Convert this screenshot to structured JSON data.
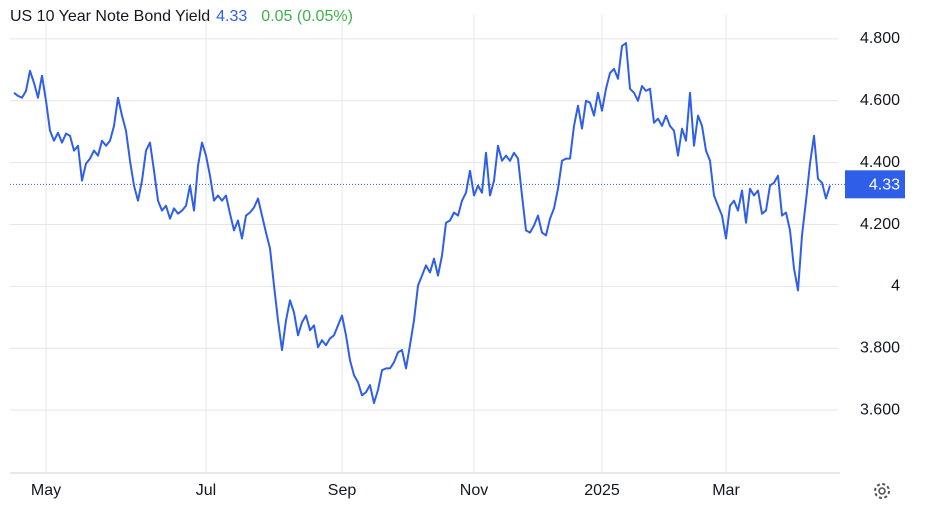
{
  "chart_data": {
    "type": "line",
    "title": "US 10 Year Note Bond Yield",
    "last_value": 4.33,
    "change_label": "0.05 (0.05%)",
    "color": "#2f5fe8",
    "change_color": "#3cb34a",
    "grid": true,
    "ylim": [
      3.4,
      4.9
    ],
    "yticks": [
      {
        "value": 3.6,
        "label": "3.600"
      },
      {
        "value": 3.8,
        "label": "3.800"
      },
      4,
      {
        "value": 4.2,
        "label": "4.200"
      },
      {
        "value": 4.4,
        "label": "4.400"
      },
      {
        "value": 4.6,
        "label": "4.600"
      },
      {
        "value": 4.8,
        "label": "4.800"
      }
    ],
    "xlim": [
      -1,
      206
    ],
    "xticks": [
      {
        "value": 8,
        "label": "May"
      },
      {
        "value": 48,
        "label": "Jul"
      },
      {
        "value": 82,
        "label": "Sep"
      },
      {
        "value": 115,
        "label": "Nov"
      },
      {
        "value": 147,
        "label": "2025"
      },
      {
        "value": 178,
        "label": "Mar"
      }
    ],
    "values": [
      4.626,
      4.616,
      4.61,
      4.632,
      4.697,
      4.658,
      4.61,
      4.681,
      4.6,
      4.503,
      4.471,
      4.497,
      4.465,
      4.494,
      4.487,
      4.439,
      4.455,
      4.342,
      4.397,
      4.413,
      4.439,
      4.423,
      4.471,
      4.455,
      4.471,
      4.519,
      4.61,
      4.552,
      4.503,
      4.406,
      4.326,
      4.277,
      4.342,
      4.439,
      4.465,
      4.374,
      4.277,
      4.245,
      4.261,
      4.219,
      4.252,
      4.235,
      4.245,
      4.261,
      4.326,
      4.245,
      4.39,
      4.465,
      4.423,
      4.358,
      4.277,
      4.294,
      4.277,
      4.294,
      4.235,
      4.181,
      4.213,
      4.155,
      4.229,
      4.239,
      4.255,
      4.284,
      4.229,
      4.174,
      4.123,
      4.003,
      3.89,
      3.794,
      3.89,
      3.955,
      3.916,
      3.842,
      3.884,
      3.906,
      3.858,
      3.874,
      3.803,
      3.826,
      3.81,
      3.832,
      3.842,
      3.874,
      3.906,
      3.842,
      3.761,
      3.713,
      3.69,
      3.648,
      3.658,
      3.681,
      3.623,
      3.665,
      3.729,
      3.735,
      3.735,
      3.755,
      3.787,
      3.794,
      3.735,
      3.81,
      3.89,
      4.003,
      4.035,
      4.068,
      4.045,
      4.09,
      4.035,
      4.1,
      4.206,
      4.213,
      4.239,
      4.229,
      4.277,
      4.303,
      4.374,
      4.294,
      4.326,
      4.303,
      4.432,
      4.294,
      4.342,
      4.455,
      4.406,
      4.423,
      4.406,
      4.432,
      4.413,
      4.294,
      4.181,
      4.174,
      4.197,
      4.229,
      4.174,
      4.165,
      4.219,
      4.252,
      4.316,
      4.406,
      4.413,
      4.413,
      4.519,
      4.584,
      4.51,
      4.6,
      4.594,
      4.552,
      4.626,
      4.568,
      4.639,
      4.69,
      4.703,
      4.671,
      4.777,
      4.787,
      4.639,
      4.626,
      4.6,
      4.648,
      4.632,
      4.639,
      4.529,
      4.542,
      4.519,
      4.552,
      4.519,
      4.503,
      4.423,
      4.51,
      4.471,
      4.626,
      4.455,
      4.552,
      4.519,
      4.439,
      4.406,
      4.294,
      4.261,
      4.229,
      4.155,
      4.261,
      4.277,
      4.245,
      4.31,
      4.206,
      4.316,
      4.294,
      4.31,
      4.235,
      4.245,
      4.326,
      4.335,
      4.358,
      4.229,
      4.239,
      4.181,
      4.058,
      3.987,
      4.165,
      4.277,
      4.397,
      4.487,
      4.348,
      4.335,
      4.284,
      4.326
    ]
  }
}
